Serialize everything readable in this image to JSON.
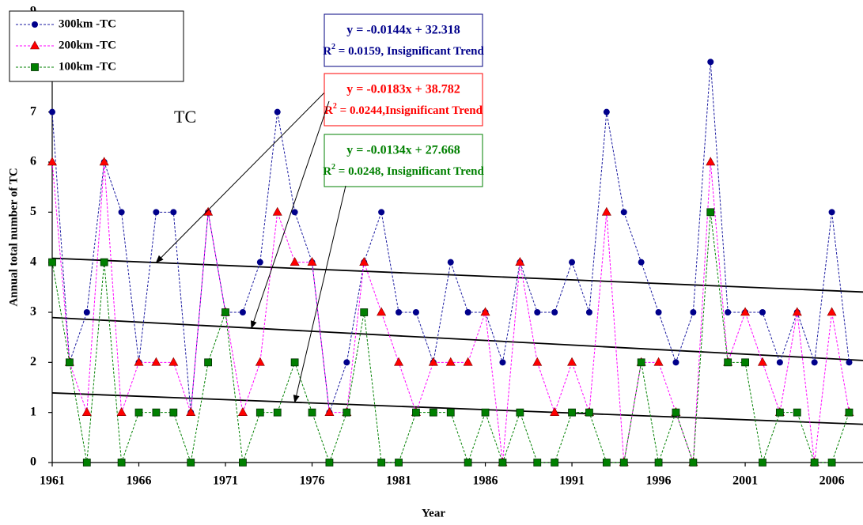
{
  "chart_data": {
    "type": "line",
    "label": "TC",
    "x_label": "Year",
    "y_label": "Annual total number of TC",
    "legend": "upper left",
    "xlim": [
      1961,
      2007.8
    ],
    "ylim": [
      0,
      9
    ],
    "xticks": [
      1961,
      1966,
      1971,
      1976,
      1981,
      1986,
      1991,
      1996,
      2001,
      2006
    ],
    "yticks": [
      0,
      1,
      2,
      3,
      4,
      5,
      6,
      7,
      8,
      9
    ],
    "x": [
      1961,
      1962,
      1963,
      1964,
      1965,
      1966,
      1967,
      1968,
      1969,
      1970,
      1971,
      1972,
      1973,
      1974,
      1975,
      1976,
      1977,
      1978,
      1979,
      1980,
      1981,
      1982,
      1983,
      1984,
      1985,
      1986,
      1987,
      1988,
      1989,
      1990,
      1991,
      1992,
      1993,
      1994,
      1995,
      1996,
      1997,
      1998,
      1999,
      2000,
      2001,
      2002,
      2003,
      2004,
      2005,
      2006,
      2007
    ],
    "series": [
      {
        "name": "300km -TC",
        "color": "#00008b",
        "line_color": "#1a1aa0",
        "marker": "circle",
        "values": [
          7,
          2,
          3,
          6,
          5,
          2,
          5,
          5,
          1,
          5,
          3,
          3,
          4,
          7,
          5,
          4,
          1,
          2,
          4,
          5,
          3,
          3,
          2,
          4,
          3,
          3,
          2,
          4,
          3,
          3,
          4,
          3,
          7,
          5,
          4,
          3,
          2,
          3,
          8,
          3,
          3,
          3,
          2,
          3,
          2,
          5,
          2
        ],
        "trend": {
          "slope": -0.0144,
          "intercept": 32.318,
          "equation": "y = -0.0144x + 32.318",
          "r_symbol": "R",
          "r_exponent": "2",
          "r2_text": " = 0.0159, Insignificant Trend"
        }
      },
      {
        "name": "200km -TC",
        "color": "#ff0000",
        "line_color": "#ff00ff",
        "marker": "triangle",
        "values": [
          6,
          2,
          1,
          6,
          1,
          2,
          2,
          2,
          1,
          5,
          3,
          1,
          2,
          5,
          4,
          4,
          1,
          1,
          4,
          3,
          2,
          1,
          2,
          2,
          2,
          3,
          0,
          4,
          2,
          1,
          2,
          1,
          5,
          0,
          2,
          2,
          1,
          0,
          6,
          2,
          3,
          2,
          1,
          3,
          0,
          3,
          1
        ],
        "trend": {
          "slope": -0.0183,
          "intercept": 38.782,
          "equation": "y = -0.0183x + 38.782",
          "r_symbol": "R",
          "r_exponent": "2",
          "r2_text": " = 0.0244,Insignificant Trend"
        }
      },
      {
        "name": "100km -TC",
        "color": "#008000",
        "line_color": "#008000",
        "marker": "square",
        "values": [
          4,
          2,
          0,
          4,
          0,
          1,
          1,
          1,
          0,
          2,
          3,
          0,
          1,
          1,
          2,
          1,
          0,
          1,
          3,
          0,
          0,
          1,
          1,
          1,
          0,
          1,
          0,
          1,
          0,
          0,
          1,
          1,
          0,
          0,
          2,
          0,
          1,
          0,
          5,
          2,
          2,
          0,
          1,
          1,
          0,
          0,
          1
        ],
        "trend": {
          "slope": -0.0134,
          "intercept": 27.668,
          "equation": "y = -0.0134x + 27.668",
          "r_symbol": "R",
          "r_exponent": "2",
          "r2_text": " = 0.0248, Insignificant Trend"
        }
      }
    ]
  }
}
